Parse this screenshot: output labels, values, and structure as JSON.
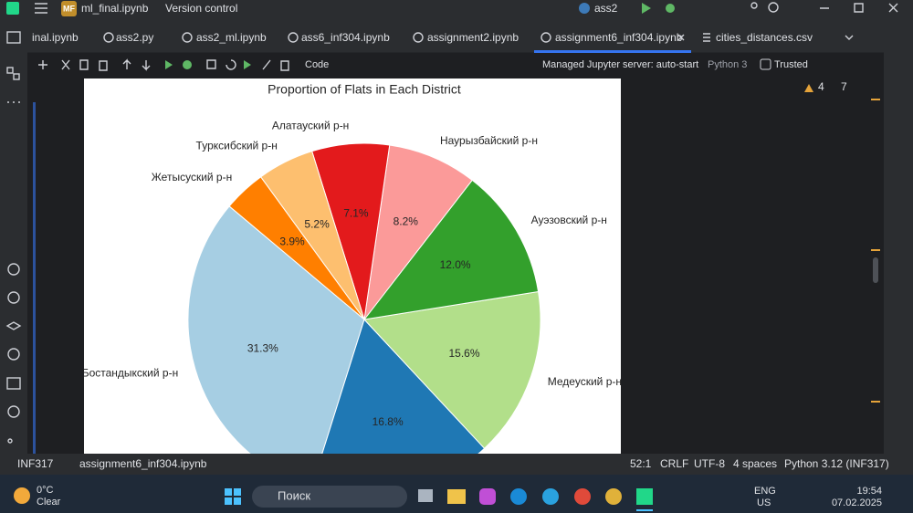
{
  "title_bar": {
    "badge": "MF",
    "project": "ml_final.ipynb",
    "vcs": "Version control",
    "run_config": "ass2"
  },
  "tabs": [
    "inal.ipynb",
    "ass2.py",
    "ass2_ml.ipynb",
    "ass6_inf304.ipynb",
    "assignment2.ipynb",
    "assignment6_inf304.ipynb",
    "cities_distances.csv"
  ],
  "toolbar": {
    "cell_type": "Code",
    "server": "Managed Jupyter server: auto-start",
    "kernel": "Python 3",
    "trusted": "Trusted",
    "warnings": 4,
    "checks": 7
  },
  "chart_data": {
    "type": "pie",
    "title": "Proportion of Flats in Each District",
    "categories": [
      "Бостандыкский р-н",
      null,
      "Медеуский р-н",
      "Ауэзовский р-н",
      "Наурызбайский р-н",
      "Алатауский р-н",
      "Турксибский р-н",
      "Жетысуский р-н"
    ],
    "values": [
      31.3,
      16.8,
      15.6,
      12.0,
      8.2,
      7.1,
      5.2,
      3.9
    ],
    "value_labels": [
      "31.3%",
      "16.8%",
      "15.6%",
      "12.0%",
      "8.2%",
      "7.1%",
      "5.2%",
      "3.9%"
    ],
    "colors": [
      "#a6cee3",
      "#1f78b4",
      "#b2df8a",
      "#33a02c",
      "#fb9a99",
      "#e31a1c",
      "#fdbf6f",
      "#ff7f00"
    ],
    "startangle": 140
  },
  "status_bar": {
    "project": "INF317",
    "file": "assignment6_inf304.ipynb",
    "position": "52:1",
    "line_separator": "CRLF",
    "encoding": "UTF-8",
    "indent": "4 spaces",
    "interpreter": "Python 3.12 (INF317)"
  },
  "taskbar": {
    "temperature": "0°C",
    "weather": "Clear",
    "search": "Поиск",
    "language": "ENG",
    "region": "US",
    "time": "19:54",
    "date": "07.02.2025"
  }
}
